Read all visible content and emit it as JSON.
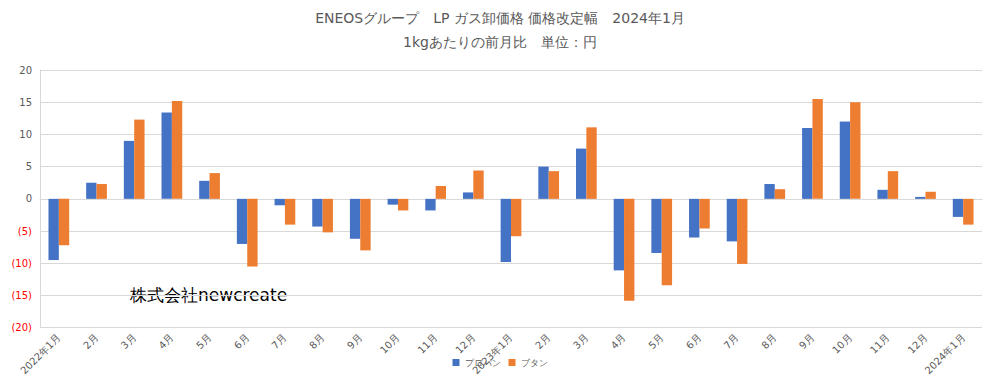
{
  "chart_data": {
    "type": "bar",
    "title": "ENEOSグループ　LP ガス卸価格 価格改定幅　2024年1月",
    "subtitle": "1kgあたりの前月比　単位：円",
    "annotations": [
      "株式会社newcreate"
    ],
    "categories": [
      "2022年1月",
      "2月",
      "3月",
      "4月",
      "5月",
      "6月",
      "7月",
      "8月",
      "9月",
      "10月",
      "11月",
      "12月",
      "2023年1月",
      "2月",
      "3月",
      "4月",
      "5月",
      "6月",
      "7月",
      "8月",
      "9月",
      "10月",
      "11月",
      "12月",
      "2024年1月"
    ],
    "series": [
      {
        "name": "プロパン",
        "color": "#4472c4",
        "values": [
          -9.5,
          2.5,
          9.0,
          13.4,
          2.8,
          -7.0,
          -1.0,
          -4.3,
          -6.2,
          -0.9,
          -1.8,
          1.0,
          -9.8,
          5.0,
          7.8,
          -11.1,
          -8.4,
          -6.0,
          -6.6,
          2.3,
          11.0,
          12.0,
          1.4,
          0.3,
          -2.8
        ]
      },
      {
        "name": "ブタン",
        "color": "#ed7d31",
        "values": [
          -7.2,
          2.3,
          12.3,
          15.2,
          4.0,
          -10.5,
          -4.0,
          -5.2,
          -8.0,
          -1.8,
          2.0,
          4.4,
          -5.8,
          4.3,
          11.1,
          -15.8,
          -13.4,
          -4.6,
          -10.1,
          1.5,
          15.5,
          15.0,
          4.3,
          1.1,
          -4.0
        ]
      }
    ],
    "ylim": [
      -20,
      20
    ],
    "yticks": [
      {
        "value": -20,
        "label": "(20)"
      },
      {
        "value": -15,
        "label": "(15)"
      },
      {
        "value": -10,
        "label": "(10)"
      },
      {
        "value": -5,
        "label": "(5)"
      },
      0,
      5,
      10,
      15,
      20
    ],
    "grid": true,
    "legend": "bottom"
  }
}
